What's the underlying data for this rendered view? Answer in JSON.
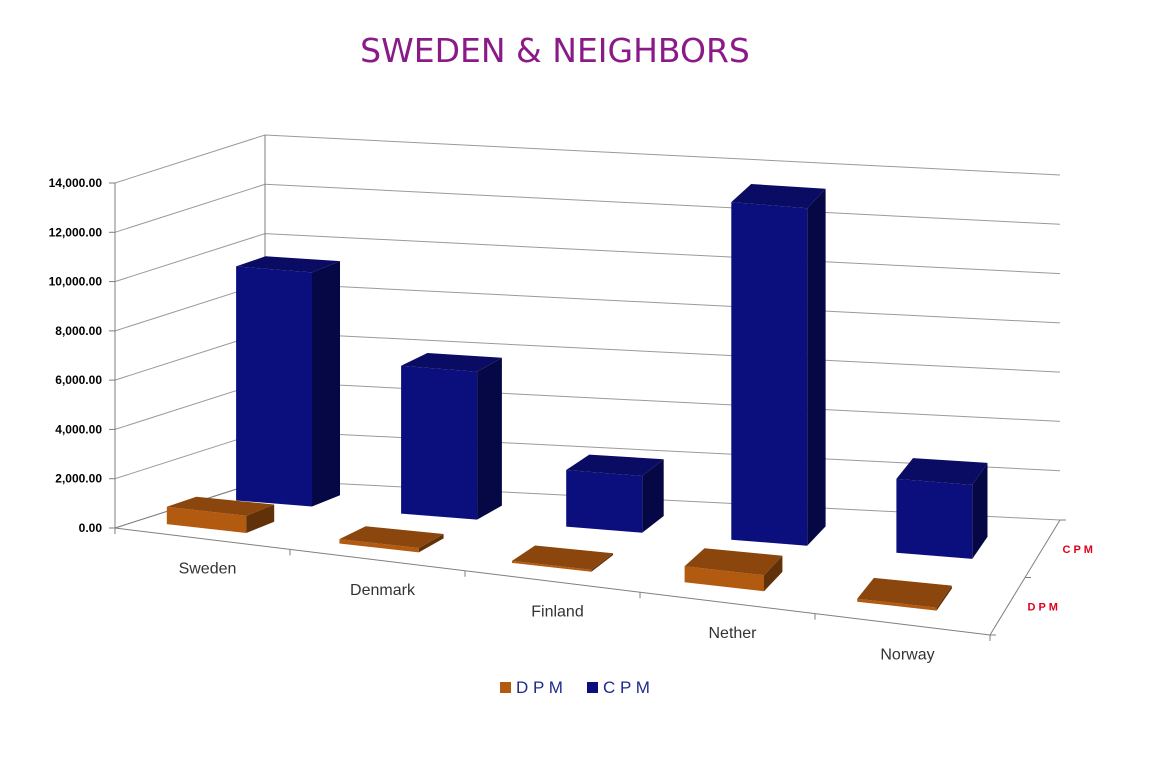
{
  "chart_data": {
    "type": "bar",
    "title": "SWEDEN & NEIGHBORS",
    "categories": [
      "Sweden",
      "Denmark",
      "Finland",
      "Nether",
      "Norway"
    ],
    "series": [
      {
        "name": "D P M",
        "axis_label": "D P M",
        "values": [
          700,
          180,
          80,
          650,
          120
        ]
      },
      {
        "name": "C P M",
        "axis_label": "C P M",
        "values": [
          9500,
          6000,
          2300,
          13700,
          3000
        ]
      }
    ],
    "y_ticks": [
      "0.00",
      "2,000.00",
      "4,000.00",
      "6,000.00",
      "8,000.00",
      "10,000.00",
      "12,000.00",
      "14,000.00"
    ],
    "ylim": [
      0,
      14000
    ],
    "grid": true,
    "legend_position": "bottom",
    "colors": {
      "title": "#8B1A89",
      "dpm": "#B15A10",
      "cpm": "#0B0F7E",
      "depth_label": "#E0001B",
      "axis": "#7F7F7F",
      "grid": "#9A9A9A",
      "legend_text": "#1E2A8C"
    }
  }
}
